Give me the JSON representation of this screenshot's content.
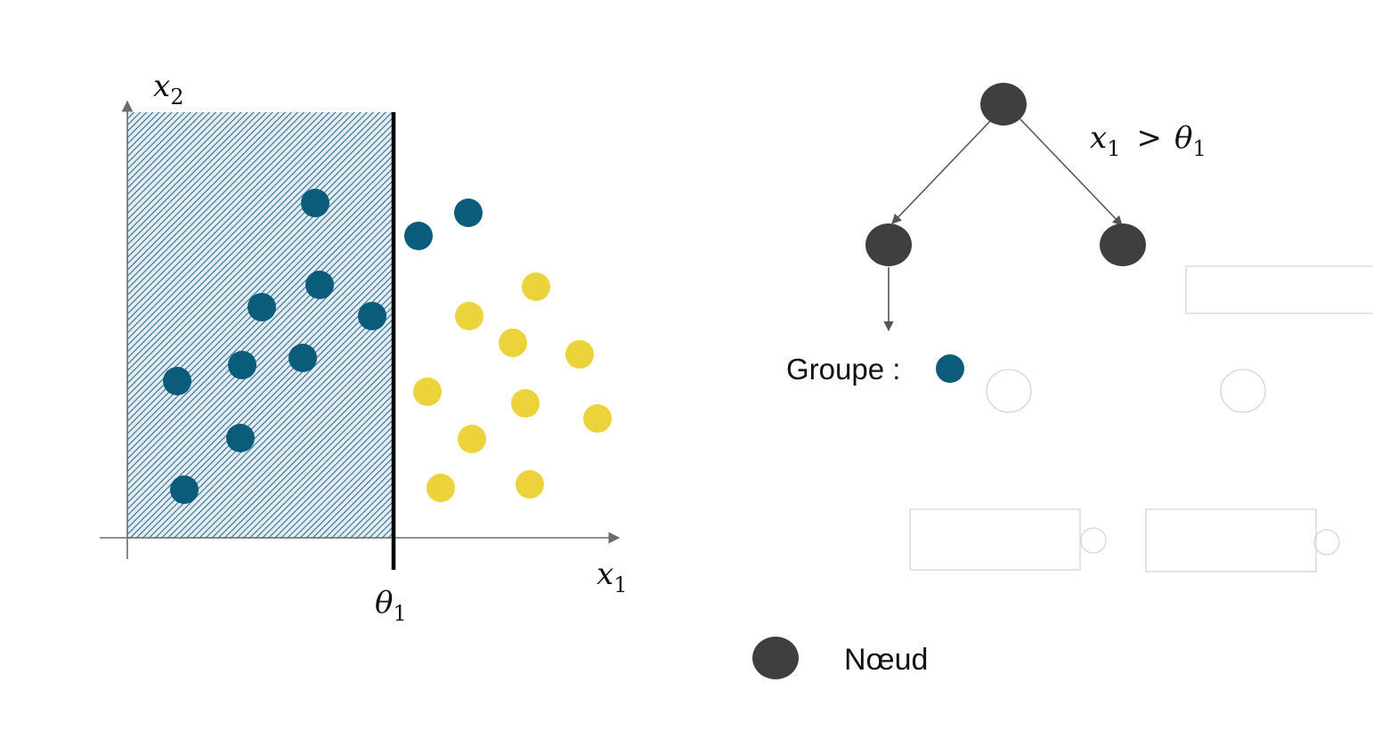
{
  "colors": {
    "blue": "#0b5b7a",
    "yellow": "#ecd33b",
    "node": "#3f3f3f",
    "axis": "#6b6b6b",
    "hatch": "#2f7090",
    "ghost": "#d6d6d6"
  },
  "scatter": {
    "x_axis": {
      "var": "x",
      "sub": "1"
    },
    "y_axis": {
      "var": "x",
      "sub": "2"
    },
    "threshold": {
      "var": "θ",
      "sub": "1"
    },
    "region": {
      "pattern": "diagonal-hatch",
      "side": "left-of-threshold"
    }
  },
  "chart_data": {
    "type": "scatter",
    "series": [
      {
        "color": "#0b5b7a",
        "points": [
          [
            354,
            228
          ],
          [
            470,
            265
          ],
          [
            526,
            239
          ],
          [
            359,
            320
          ],
          [
            294,
            345
          ],
          [
            418,
            355
          ],
          [
            199,
            428
          ],
          [
            272,
            410
          ],
          [
            340,
            402
          ],
          [
            270,
            492
          ],
          [
            207,
            550
          ]
        ]
      },
      {
        "color": "#ecd33b",
        "points": [
          [
            602,
            322
          ],
          [
            527,
            355
          ],
          [
            576,
            385
          ],
          [
            651,
            398
          ],
          [
            480,
            440
          ],
          [
            590,
            453
          ],
          [
            671,
            470
          ],
          [
            530,
            493
          ],
          [
            495,
            548
          ],
          [
            595,
            544
          ]
        ]
      }
    ],
    "threshold_x": 442,
    "xlim": [
      143,
      697
    ],
    "ylim": [
      126,
      605
    ]
  },
  "tree": {
    "condition": {
      "var": "x",
      "sub": "1",
      "op": ">",
      "theta_var": "θ",
      "theta_sub": "1"
    },
    "group_label": "Groupe :"
  },
  "legend": {
    "node_label": "Nœud"
  }
}
